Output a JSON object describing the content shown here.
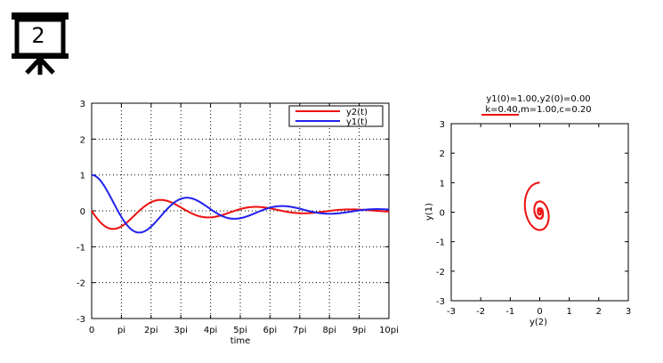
{
  "slide": {
    "number": "2"
  },
  "chart_data": [
    {
      "type": "line",
      "xlabel": "time",
      "ylabel": "",
      "xlim": [
        0,
        31.4159
      ],
      "ylim": [
        -3,
        3
      ],
      "x_tick_labels": [
        "0",
        "pi",
        "2pi",
        "3pi",
        "4pi",
        "5pi",
        "6pi",
        "7pi",
        "8pi",
        "9pi",
        "10pi"
      ],
      "y_tick_labels": [
        "3",
        "2",
        "1",
        "0",
        "-1",
        "-2",
        "-3"
      ],
      "grid": true,
      "legend_position": "top-right",
      "model": {
        "k": 0.4,
        "m": 1.0,
        "c": 0.2,
        "y1_0": 1.0,
        "y2_0": 0.0
      },
      "series": [
        {
          "name": "y2(t)",
          "color": "#ee1111"
        },
        {
          "name": "y1(t)",
          "color": "#2222ee"
        }
      ]
    },
    {
      "type": "line",
      "title_lines": [
        "y1(0)=1.00,y2(0)=0.00",
        "k=0.40,m=1.00,c=0.20"
      ],
      "xlabel": "y(2)",
      "ylabel": "y(1)",
      "xlim": [
        -3,
        3
      ],
      "ylim": [
        -3,
        3
      ],
      "x_tick_labels": [
        "-3",
        "-2",
        "-1",
        "0",
        "1",
        "2",
        "3"
      ],
      "y_tick_labels": [
        "3",
        "2",
        "1",
        "0",
        "-1",
        "-2",
        "-3"
      ],
      "grid": false,
      "series": [
        {
          "color": "#ee1111"
        }
      ]
    }
  ]
}
